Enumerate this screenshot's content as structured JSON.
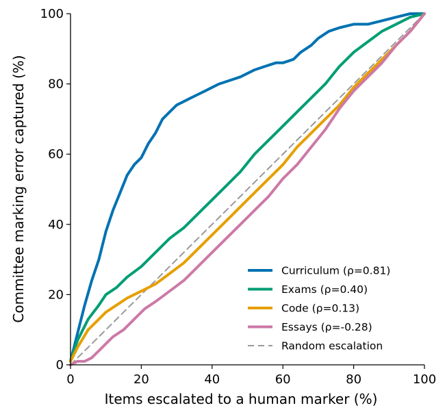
{
  "chart_data": {
    "type": "line",
    "xlabel": "Items escalated to a human marker (%)",
    "ylabel": "Committee marking error captured (%)",
    "xlim": [
      0,
      100
    ],
    "ylim": [
      0,
      100
    ],
    "xticks": [
      "0",
      "20",
      "40",
      "60",
      "80",
      "100"
    ],
    "yticks": [
      "0",
      "20",
      "40",
      "60",
      "80",
      "100"
    ],
    "grid": false,
    "legend_position": "lower-right",
    "series": [
      {
        "name": "Curriculum  (ρ=0.81)",
        "color": "#0072B2",
        "x": [
          0,
          2,
          4,
          6,
          8,
          10,
          12,
          14,
          16,
          18,
          20,
          22,
          24,
          26,
          28,
          30,
          32,
          34,
          36,
          38,
          40,
          42,
          45,
          48,
          50,
          52,
          55,
          58,
          60,
          63,
          65,
          68,
          70,
          73,
          76,
          80,
          84,
          88,
          92,
          96,
          100
        ],
        "y": [
          1,
          9,
          17,
          24,
          30,
          38,
          44,
          49,
          54,
          57,
          59,
          63,
          66,
          70,
          72,
          74,
          75,
          76,
          77,
          78,
          79,
          80,
          81,
          82,
          83,
          84,
          85,
          86,
          86,
          87,
          89,
          91,
          93,
          95,
          96,
          97,
          97,
          98,
          99,
          100,
          100
        ]
      },
      {
        "name": "Exams  (ρ=0.40)",
        "color": "#009E73",
        "x": [
          0,
          2,
          5,
          8,
          10,
          13,
          16,
          20,
          24,
          28,
          32,
          36,
          40,
          44,
          48,
          52,
          56,
          60,
          64,
          68,
          72,
          76,
          80,
          84,
          88,
          92,
          96,
          100
        ],
        "y": [
          1,
          7,
          13,
          17,
          20,
          22,
          25,
          28,
          32,
          36,
          39,
          43,
          47,
          51,
          55,
          60,
          64,
          68,
          72,
          76,
          80,
          85,
          89,
          92,
          95,
          97,
          99,
          100
        ]
      },
      {
        "name": "Code  (ρ=0.13)",
        "color": "#E69F00",
        "x": [
          0,
          2,
          5,
          8,
          10,
          13,
          16,
          20,
          24,
          28,
          32,
          36,
          40,
          44,
          48,
          52,
          56,
          60,
          64,
          68,
          72,
          76,
          80,
          84,
          88,
          92,
          96,
          100
        ],
        "y": [
          1,
          5,
          10,
          13,
          15,
          17,
          19,
          21,
          23,
          26,
          29,
          33,
          37,
          41,
          45,
          49,
          53,
          57,
          62,
          66,
          70,
          74,
          79,
          83,
          87,
          91,
          95,
          100
        ]
      },
      {
        "name": "Essays  (ρ=-0.28)",
        "color": "#CC79A7",
        "x": [
          0,
          2,
          4,
          6,
          8,
          10,
          12,
          15,
          18,
          21,
          24,
          28,
          32,
          36,
          40,
          44,
          48,
          52,
          56,
          60,
          64,
          68,
          72,
          76,
          80,
          84,
          88,
          92,
          96,
          100
        ],
        "y": [
          0,
          1,
          1,
          2,
          4,
          6,
          8,
          10,
          13,
          16,
          18,
          21,
          24,
          28,
          32,
          36,
          40,
          44,
          48,
          53,
          57,
          62,
          67,
          73,
          78,
          82,
          86,
          91,
          95,
          100
        ]
      },
      {
        "name": "Random escalation",
        "color": "#999999",
        "dashed": true,
        "x": [
          0,
          100
        ],
        "y": [
          0,
          100
        ]
      }
    ]
  }
}
